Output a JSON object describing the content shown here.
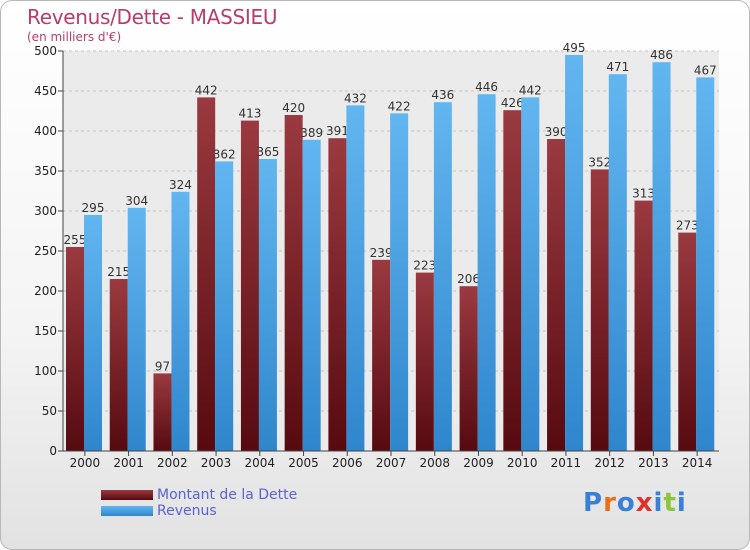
{
  "chart_data": {
    "type": "bar",
    "title": "Revenus/Dette - MASSIEU",
    "subtitle": "(en milliers d'€)",
    "categories": [
      "2000",
      "2001",
      "2002",
      "2003",
      "2004",
      "2005",
      "2006",
      "2007",
      "2008",
      "2009",
      "2010",
      "2011",
      "2012",
      "2013",
      "2014"
    ],
    "series": [
      {
        "name": "Montant de la Dette",
        "color": "#7a1e24",
        "values": [
          255,
          215,
          97,
          442,
          413,
          420,
          391,
          239,
          223,
          206,
          426,
          390,
          352,
          313,
          273
        ]
      },
      {
        "name": "Revenus",
        "color": "#4aa3e6",
        "values": [
          295,
          304,
          324,
          362,
          365,
          389,
          432,
          422,
          436,
          446,
          442,
          495,
          471,
          486,
          467
        ]
      }
    ],
    "ylim": [
      0,
      500
    ],
    "yticks": [
      0,
      50,
      100,
      150,
      200,
      250,
      300,
      350,
      400,
      450,
      500
    ],
    "grid": true,
    "legend": "bottom-left"
  },
  "logo": {
    "text": "Proxiti",
    "colors": [
      "#3a7fd6",
      "#e8701a",
      "#3a7fd6",
      "#e0302a",
      "#3a7fd6",
      "#8cc63f",
      "#3a7fd6"
    ]
  }
}
